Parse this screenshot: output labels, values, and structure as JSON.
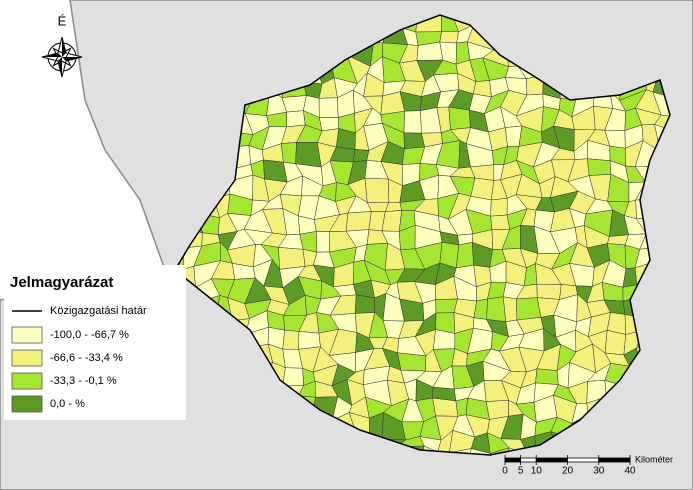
{
  "north_label": "É",
  "legend": {
    "title": "Jelmagyarázat",
    "boundary_label": "Közigazgatási határ",
    "classes": [
      {
        "label": "-100,0 -  -66,7 %",
        "color": "#ffffbe"
      },
      {
        "label": "-66,6 -  -33,4 %",
        "color": "#f3f07c"
      },
      {
        "label": "-33,3 -  -0,1 %",
        "color": "#a6e632"
      },
      {
        "label": "0,0 -  %",
        "color": "#5e9a26"
      }
    ]
  },
  "scale_bar": {
    "unit": "Kilométer",
    "ticks": [
      0,
      5,
      10,
      20,
      30,
      40
    ]
  }
}
